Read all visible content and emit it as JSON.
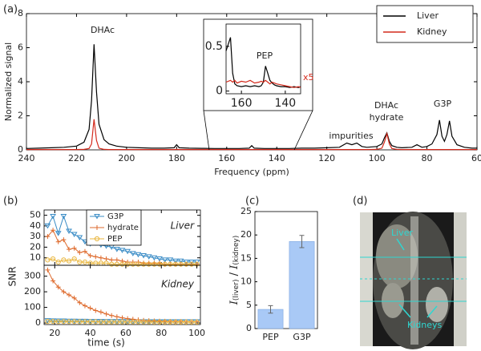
{
  "chart_data": [
    {
      "type": "line",
      "panel": "(a)",
      "xlabel": "Frequency (ppm)",
      "ylabel": "Normalized signal",
      "xlim": [
        240,
        60
      ],
      "xticks": [
        240,
        220,
        200,
        180,
        160,
        140,
        120,
        100,
        80,
        60
      ],
      "ylim": [
        0,
        8
      ],
      "yticks": [
        0,
        2,
        4,
        6,
        8
      ],
      "legend": "upper right",
      "annotations": [
        "DHAc",
        "impurities",
        "DHAc",
        "hydrate",
        "G3P"
      ],
      "x": [
        240,
        235,
        230,
        225,
        220,
        217,
        215,
        214,
        213,
        212,
        211,
        209,
        207,
        204,
        200,
        195,
        190,
        185,
        181,
        180,
        179,
        175,
        170,
        165,
        160,
        155,
        151,
        150,
        149,
        145,
        140,
        135,
        130,
        125,
        120,
        115,
        112,
        110,
        108,
        106,
        104,
        100,
        98,
        97,
        96,
        95,
        94,
        92,
        90,
        86,
        84,
        82,
        80,
        78,
        76,
        75,
        74,
        73,
        72,
        71,
        70,
        68,
        65,
        62,
        60
      ],
      "series": [
        {
          "name": "Liver",
          "color": "#000000",
          "values": [
            0.08,
            0.1,
            0.12,
            0.15,
            0.22,
            0.45,
            1.2,
            2.9,
            6.2,
            3.4,
            1.5,
            0.6,
            0.35,
            0.22,
            0.15,
            0.12,
            0.1,
            0.1,
            0.12,
            0.3,
            0.12,
            0.1,
            0.09,
            0.08,
            0.08,
            0.08,
            0.1,
            0.25,
            0.1,
            0.08,
            0.08,
            0.08,
            0.1,
            0.1,
            0.12,
            0.15,
            0.4,
            0.3,
            0.4,
            0.2,
            0.15,
            0.2,
            0.35,
            0.7,
            1.0,
            0.5,
            0.25,
            0.15,
            0.12,
            0.15,
            0.3,
            0.15,
            0.2,
            0.35,
            0.9,
            1.75,
            0.8,
            0.5,
            0.9,
            1.7,
            0.8,
            0.3,
            0.15,
            0.1,
            0.1
          ]
        },
        {
          "name": "Kidney",
          "color": "#d42a1c",
          "values": [
            0.02,
            0.02,
            0.02,
            0.02,
            0.02,
            0.03,
            0.08,
            0.35,
            1.8,
            0.55,
            0.1,
            0.03,
            0.02,
            0.02,
            0.02,
            0.02,
            0.02,
            0.02,
            0.02,
            0.03,
            0.02,
            0.02,
            0.02,
            0.02,
            0.02,
            0.02,
            0.02,
            0.02,
            0.02,
            0.02,
            0.02,
            0.02,
            0.02,
            0.02,
            0.02,
            0.02,
            0.02,
            0.02,
            0.02,
            0.02,
            0.02,
            0.03,
            0.1,
            0.45,
            0.95,
            0.35,
            0.08,
            0.03,
            0.02,
            0.02,
            0.02,
            0.02,
            0.02,
            0.02,
            0.02,
            0.02,
            0.02,
            0.02,
            0.02,
            0.02,
            0.02,
            0.02,
            0.02,
            0.02,
            0.02
          ]
        }
      ],
      "inset": {
        "xlim": [
          167,
          133
        ],
        "xticks": [
          160,
          140
        ],
        "ylim": [
          -0.03,
          0.75
        ],
        "yticks": [
          0,
          0.5
        ],
        "annotations": [
          "PEP",
          "x5"
        ],
        "x": [
          167,
          165,
          164,
          163,
          162,
          160,
          158,
          156,
          154,
          152,
          151,
          150,
          149,
          148,
          147,
          146,
          145,
          144,
          142,
          140,
          138,
          136,
          134,
          133
        ],
        "series": [
          {
            "color": "#000000",
            "values": [
              0.45,
              0.6,
              0.2,
              0.08,
              0.06,
              0.05,
              0.06,
              0.05,
              0.06,
              0.05,
              0.06,
              0.1,
              0.28,
              0.2,
              0.12,
              0.09,
              0.07,
              0.06,
              0.05,
              0.05,
              0.04,
              0.05,
              0.04,
              0.05
            ]
          },
          {
            "color": "#d42a1c",
            "values": [
              0.1,
              0.12,
              0.1,
              0.12,
              0.09,
              0.11,
              0.1,
              0.12,
              0.09,
              0.1,
              0.11,
              0.1,
              0.12,
              0.1,
              0.08,
              0.1,
              0.09,
              0.08,
              0.07,
              0.06,
              0.05,
              0.04,
              0.05,
              0.04
            ]
          }
        ]
      }
    },
    {
      "type": "line",
      "panel": "(b)",
      "xlabel": "time (s)",
      "ylabel": "SNR",
      "xlim": [
        14,
        102
      ],
      "xticks": [
        20,
        40,
        60,
        80,
        100
      ],
      "x": [
        16,
        19,
        22,
        25,
        28,
        31,
        34,
        37,
        40,
        43,
        46,
        49,
        52,
        55,
        58,
        61,
        64,
        67,
        70,
        73,
        76,
        79,
        82,
        85,
        88,
        91,
        94,
        97,
        100
      ],
      "subplots": [
        {
          "label": "Liver",
          "ylim": [
            3,
            55
          ],
          "yticks": [
            10,
            20,
            30,
            40,
            50
          ],
          "series": [
            {
              "name": "G3P",
              "color": "#3a8cc6",
              "marker": "triangle-down",
              "values": [
                40,
                49,
                33,
                49,
                35,
                32,
                29,
                25,
                23,
                24,
                22,
                21,
                20,
                18,
                17,
                16,
                14,
                13,
                12,
                11,
                10,
                9,
                8,
                8,
                7,
                7,
                6,
                6,
                6
              ]
            },
            {
              "name": "hydrate",
              "color": "#de6a2c",
              "marker": "plus",
              "values": [
                30,
                36,
                25,
                27,
                18,
                19,
                15,
                16,
                12,
                11,
                10,
                9,
                8,
                8,
                7,
                6,
                6,
                6,
                5,
                5,
                5,
                5,
                4,
                4,
                4,
                4,
                4,
                4,
                4
              ]
            },
            {
              "name": "PEP",
              "color": "#e9b53b",
              "marker": "circle",
              "values": [
                8,
                9,
                6,
                8,
                7,
                9,
                6,
                6,
                5,
                5,
                5,
                5,
                4,
                4,
                4,
                4,
                4,
                4,
                4,
                4,
                4,
                4,
                4,
                4,
                4,
                4,
                4,
                4,
                4
              ]
            }
          ]
        },
        {
          "label": "Kidney",
          "ylim": [
            -10,
            370
          ],
          "yticks": [
            0,
            100,
            200,
            300
          ],
          "series": [
            {
              "color": "#3a8cc6",
              "marker": "triangle-down",
              "values": [
                15,
                14,
                13,
                13,
                12,
                12,
                11,
                11,
                10,
                10,
                10,
                9,
                9,
                9,
                9,
                8,
                8,
                8,
                8,
                8,
                8,
                8,
                8,
                8,
                8,
                8,
                8,
                8,
                8
              ]
            },
            {
              "color": "#de6a2c",
              "marker": "plus",
              "values": [
                340,
                270,
                230,
                200,
                180,
                160,
                130,
                110,
                95,
                80,
                70,
                58,
                48,
                40,
                33,
                28,
                24,
                20,
                17,
                15,
                13,
                12,
                11,
                10,
                9,
                9,
                8,
                8,
                8
              ]
            },
            {
              "color": "#e9b53b",
              "marker": "circle",
              "values": [
                10,
                10,
                9,
                9,
                9,
                9,
                8,
                8,
                8,
                8,
                7,
                7,
                7,
                7,
                7,
                7,
                7,
                7,
                7,
                7,
                6,
                6,
                6,
                6,
                6,
                6,
                6,
                6,
                6
              ]
            }
          ]
        }
      ]
    },
    {
      "type": "bar",
      "panel": "(c)",
      "ylabel_parts": [
        "I",
        "(liver)",
        " / ",
        "I",
        "(kidney)"
      ],
      "categories": [
        "PEP",
        "G3P"
      ],
      "values": [
        4.1,
        18.6
      ],
      "errors": [
        0.8,
        1.3
      ],
      "color": "#a9c9f6",
      "ylim": [
        0,
        25
      ],
      "yticks": [
        0,
        5,
        10,
        15,
        20,
        25
      ]
    }
  ],
  "image": {
    "panel": "(d)",
    "labels": [
      "Liver",
      "Kidneys"
    ]
  }
}
